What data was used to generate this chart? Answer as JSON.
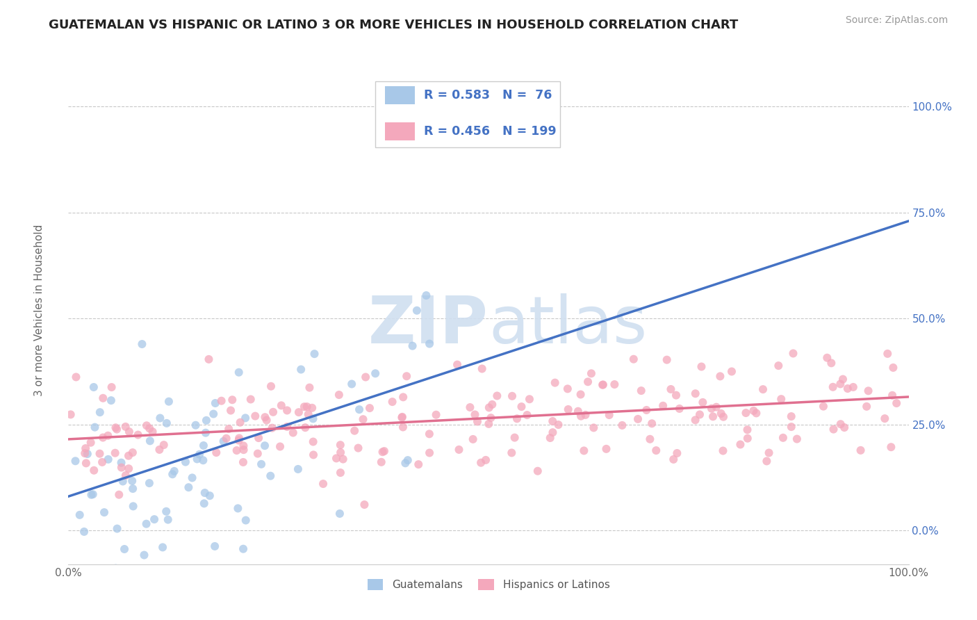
{
  "title": "GUATEMALAN VS HISPANIC OR LATINO 3 OR MORE VEHICLES IN HOUSEHOLD CORRELATION CHART",
  "source": "Source: ZipAtlas.com",
  "ylabel": "3 or more Vehicles in Household",
  "xlim": [
    0.0,
    1.0
  ],
  "ylim": [
    -0.08,
    1.12
  ],
  "yticks": [
    0.0,
    0.25,
    0.5,
    0.75,
    1.0
  ],
  "ytick_labels": [
    "0.0%",
    "25.0%",
    "50.0%",
    "75.0%",
    "100.0%"
  ],
  "xtick_left": "0.0%",
  "xtick_right": "100.0%",
  "blue_R": 0.583,
  "blue_N": 76,
  "pink_R": 0.456,
  "pink_N": 199,
  "blue_color": "#a8c8e8",
  "pink_color": "#f4a8bc",
  "blue_line_color": "#4472c4",
  "pink_line_color": "#e07090",
  "background_color": "#ffffff",
  "grid_color": "#c8c8c8",
  "watermark_color": "#d0dff0",
  "legend_blue_label": "Guatemalans",
  "legend_pink_label": "Hispanics or Latinos",
  "blue_scatter_seed": 17,
  "pink_scatter_seed": 55,
  "blue_slope": 0.65,
  "blue_intercept": 0.08,
  "pink_slope": 0.1,
  "pink_intercept": 0.215,
  "title_fontsize": 13,
  "source_fontsize": 10,
  "tick_fontsize": 11,
  "ylabel_fontsize": 11
}
